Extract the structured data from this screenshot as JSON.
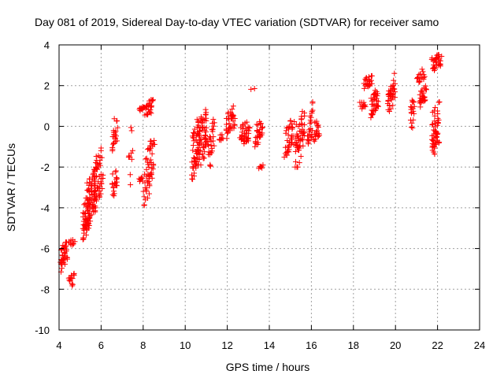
{
  "chart_data": {
    "type": "scatter",
    "title": "Day 081 of 2019, Sidereal Day-to-day VTEC variation (SDTVAR) for receiver samo",
    "xlabel": "GPS time / hours",
    "ylabel": "SDTVAR / TECUs",
    "xlim": [
      4,
      24
    ],
    "ylim": [
      -10,
      4
    ],
    "xticks": [
      "4",
      "6",
      "8",
      "10",
      "12",
      "14",
      "16",
      "18",
      "20",
      "22",
      "24"
    ],
    "yticks": [
      "-10",
      "-8",
      "-6",
      "-4",
      "-2",
      "0",
      "2",
      "4"
    ],
    "grid": true,
    "marker": "plus",
    "color": "#ff0000",
    "clusters": [
      {
        "x": [
          4.05,
          4.4
        ],
        "y": [
          -7.2,
          -5.4
        ],
        "n": 40
      },
      {
        "x": [
          4.45,
          4.75
        ],
        "y": [
          -8.1,
          -7.0
        ],
        "n": 14
      },
      {
        "x": [
          4.45,
          4.75
        ],
        "y": [
          -5.9,
          -5.5
        ],
        "n": 10
      },
      {
        "x": [
          5.1,
          5.5
        ],
        "y": [
          -5.6,
          -3.2
        ],
        "n": 55
      },
      {
        "x": [
          5.3,
          5.8
        ],
        "y": [
          -4.6,
          -2.0
        ],
        "n": 60
      },
      {
        "x": [
          5.6,
          6.1
        ],
        "y": [
          -4.2,
          -1.0
        ],
        "n": 55
      },
      {
        "x": [
          6.5,
          6.8
        ],
        "y": [
          -3.6,
          -1.8
        ],
        "n": 20
      },
      {
        "x": [
          6.5,
          6.8
        ],
        "y": [
          -1.2,
          0.6
        ],
        "n": 22
      },
      {
        "x": [
          7.3,
          7.5
        ],
        "y": [
          -3.3,
          0.4
        ],
        "n": 10
      },
      {
        "x": [
          7.8,
          8.0
        ],
        "y": [
          -2.9,
          -2.4
        ],
        "n": 8
      },
      {
        "x": [
          7.8,
          8.05
        ],
        "y": [
          0.7,
          1.0
        ],
        "n": 10
      },
      {
        "x": [
          8.0,
          8.5
        ],
        "y": [
          -3.9,
          -1.0
        ],
        "n": 45
      },
      {
        "x": [
          8.05,
          8.5
        ],
        "y": [
          0.4,
          1.4
        ],
        "n": 25
      },
      {
        "x": [
          8.2,
          8.55
        ],
        "y": [
          -1.2,
          -0.6
        ],
        "n": 12
      },
      {
        "x": [
          10.3,
          10.7
        ],
        "y": [
          -2.6,
          0.5
        ],
        "n": 55
      },
      {
        "x": [
          10.6,
          11.1
        ],
        "y": [
          -2.4,
          1.0
        ],
        "n": 60
      },
      {
        "x": [
          11.1,
          11.4
        ],
        "y": [
          -2.2,
          0.7
        ],
        "n": 25
      },
      {
        "x": [
          11.6,
          11.8
        ],
        "y": [
          -0.8,
          -0.3
        ],
        "n": 8
      },
      {
        "x": [
          11.9,
          12.4
        ],
        "y": [
          -0.6,
          1.0
        ],
        "n": 35
      },
      {
        "x": [
          12.6,
          13.1
        ],
        "y": [
          -1.0,
          0.4
        ],
        "n": 40
      },
      {
        "x": [
          13.1,
          13.3
        ],
        "y": [
          1.8,
          1.9
        ],
        "n": 2
      },
      {
        "x": [
          13.3,
          13.7
        ],
        "y": [
          -1.0,
          0.4
        ],
        "n": 30
      },
      {
        "x": [
          13.5,
          13.7
        ],
        "y": [
          -2.1,
          -1.9
        ],
        "n": 6
      },
      {
        "x": [
          14.7,
          15.2
        ],
        "y": [
          -1.6,
          0.7
        ],
        "n": 40
      },
      {
        "x": [
          15.2,
          15.7
        ],
        "y": [
          -2.0,
          0.8
        ],
        "n": 55
      },
      {
        "x": [
          15.8,
          16.1
        ],
        "y": [
          -1.0,
          1.2
        ],
        "n": 25
      },
      {
        "x": [
          16.1,
          16.4
        ],
        "y": [
          -0.9,
          0.5
        ],
        "n": 18
      },
      {
        "x": [
          18.3,
          18.6
        ],
        "y": [
          0.8,
          1.3
        ],
        "n": 10
      },
      {
        "x": [
          18.5,
          18.9
        ],
        "y": [
          1.8,
          2.6
        ],
        "n": 25
      },
      {
        "x": [
          18.8,
          19.2
        ],
        "y": [
          0.3,
          2.0
        ],
        "n": 40
      },
      {
        "x": [
          19.6,
          20.0
        ],
        "y": [
          0.5,
          2.6
        ],
        "n": 40
      },
      {
        "x": [
          20.7,
          20.9
        ],
        "y": [
          -0.3,
          1.5
        ],
        "n": 18
      },
      {
        "x": [
          21.0,
          21.4
        ],
        "y": [
          2.0,
          3.0
        ],
        "n": 18
      },
      {
        "x": [
          21.1,
          21.5
        ],
        "y": [
          0.9,
          2.0
        ],
        "n": 28
      },
      {
        "x": [
          21.7,
          22.2
        ],
        "y": [
          2.6,
          3.6
        ],
        "n": 30
      },
      {
        "x": [
          21.7,
          22.1
        ],
        "y": [
          -1.6,
          1.2
        ],
        "n": 55
      }
    ]
  }
}
